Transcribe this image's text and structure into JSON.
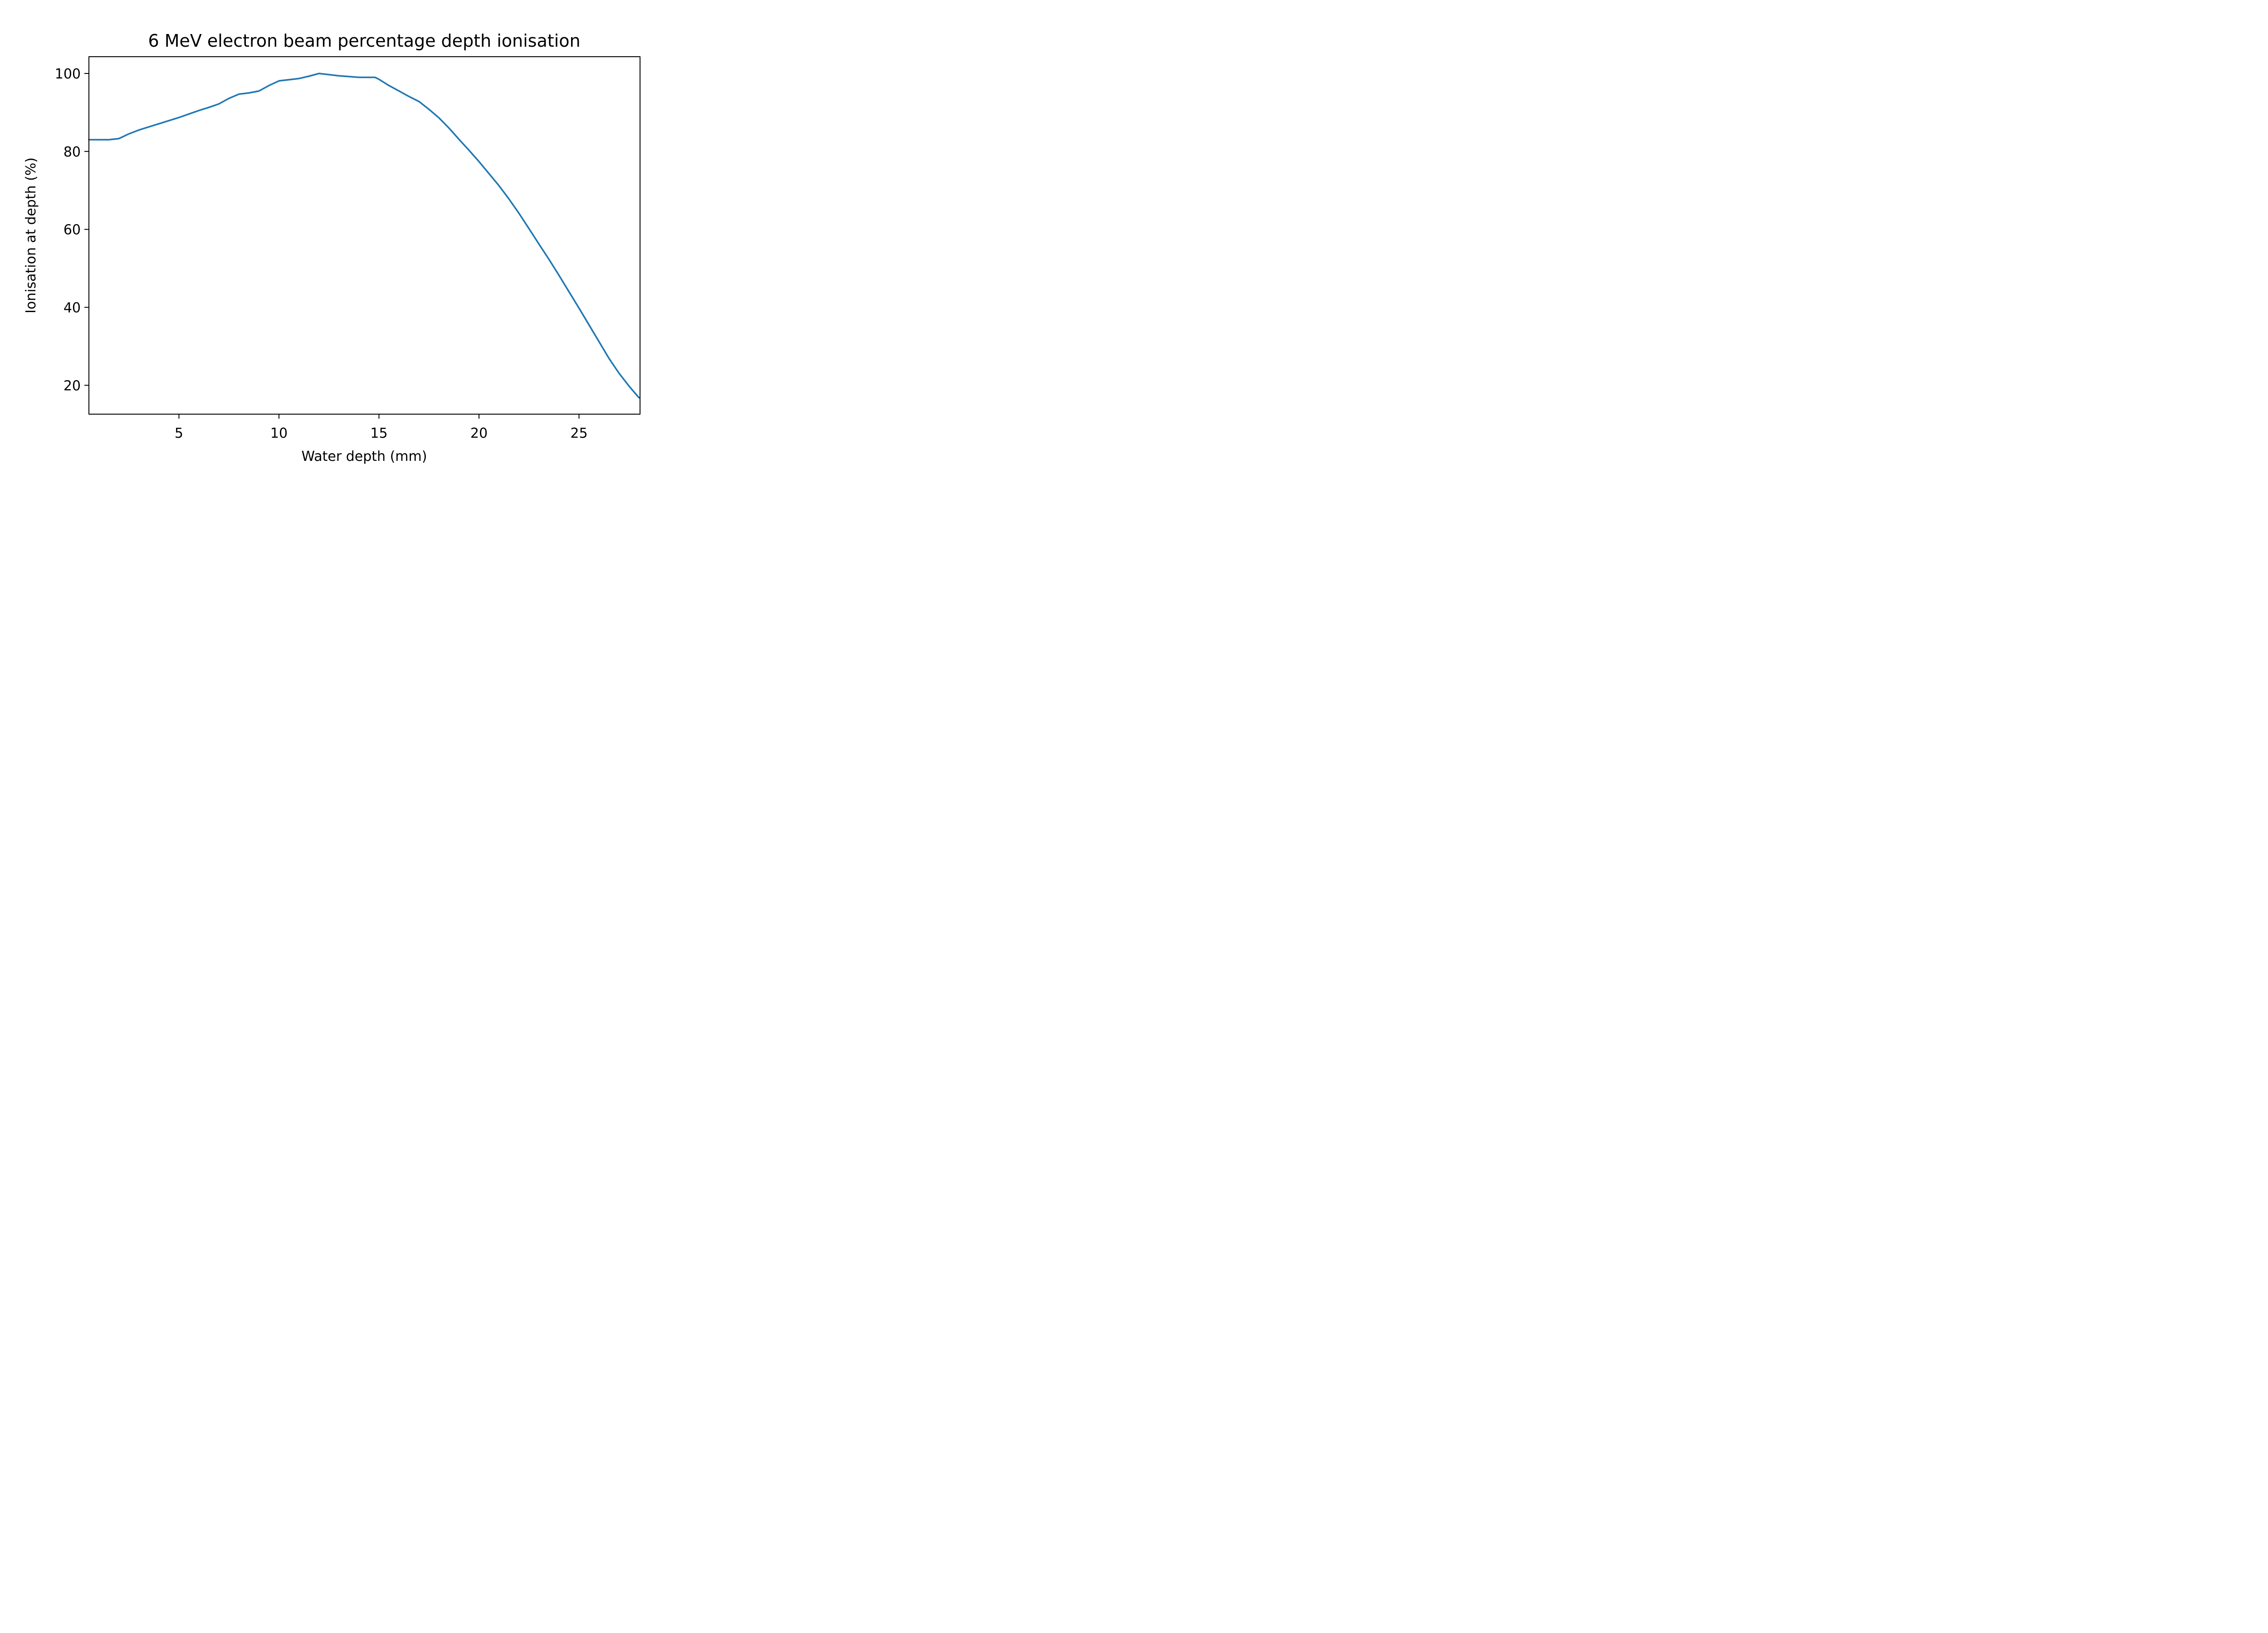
{
  "chart_data": {
    "type": "line",
    "title": "6 MeV electron beam percentage depth ionisation",
    "xlabel": "Water depth (mm)",
    "ylabel": "Ionisation at depth (%)",
    "xlim": [
      0.5,
      28.05
    ],
    "ylim": [
      12.6,
      104.3
    ],
    "xticks": [
      5,
      10,
      15,
      20,
      25
    ],
    "yticks": [
      20,
      40,
      60,
      80,
      100
    ],
    "grid": false,
    "series": [
      {
        "color": "#1f77b4",
        "x": [
          0.5,
          1.0,
          1.5,
          2.0,
          2.5,
          3.0,
          3.5,
          4.0,
          4.5,
          5.0,
          5.5,
          6.0,
          6.5,
          7.0,
          7.5,
          8.0,
          8.5,
          9.0,
          9.5,
          10.0,
          10.5,
          11.0,
          11.5,
          12.0,
          12.5,
          13.0,
          13.5,
          14.0,
          14.5,
          14.8,
          15.0,
          15.5,
          16.0,
          16.5,
          17.0,
          17.5,
          18.0,
          18.5,
          19.0,
          19.5,
          20.0,
          20.5,
          21.0,
          21.5,
          22.0,
          22.5,
          23.0,
          23.5,
          24.0,
          24.5,
          25.0,
          25.5,
          26.0,
          26.5,
          27.0,
          27.5,
          28.0
        ],
        "y": [
          83.0,
          83.0,
          83.0,
          83.3,
          84.5,
          85.5,
          86.3,
          87.1,
          87.9,
          88.7,
          89.6,
          90.5,
          91.3,
          92.2,
          93.6,
          94.7,
          95.0,
          95.5,
          96.9,
          98.1,
          98.4,
          98.7,
          99.3,
          100.0,
          99.7,
          99.4,
          99.2,
          99.0,
          99.0,
          99.0,
          98.5,
          96.9,
          95.5,
          94.1,
          92.8,
          90.8,
          88.6,
          86.0,
          83.1,
          80.3,
          77.4,
          74.3,
          71.2,
          67.8,
          64.1,
          60.2,
          56.2,
          52.3,
          48.2,
          44.0,
          39.8,
          35.5,
          31.2,
          26.9,
          23.1,
          19.8,
          16.8
        ]
      }
    ]
  }
}
